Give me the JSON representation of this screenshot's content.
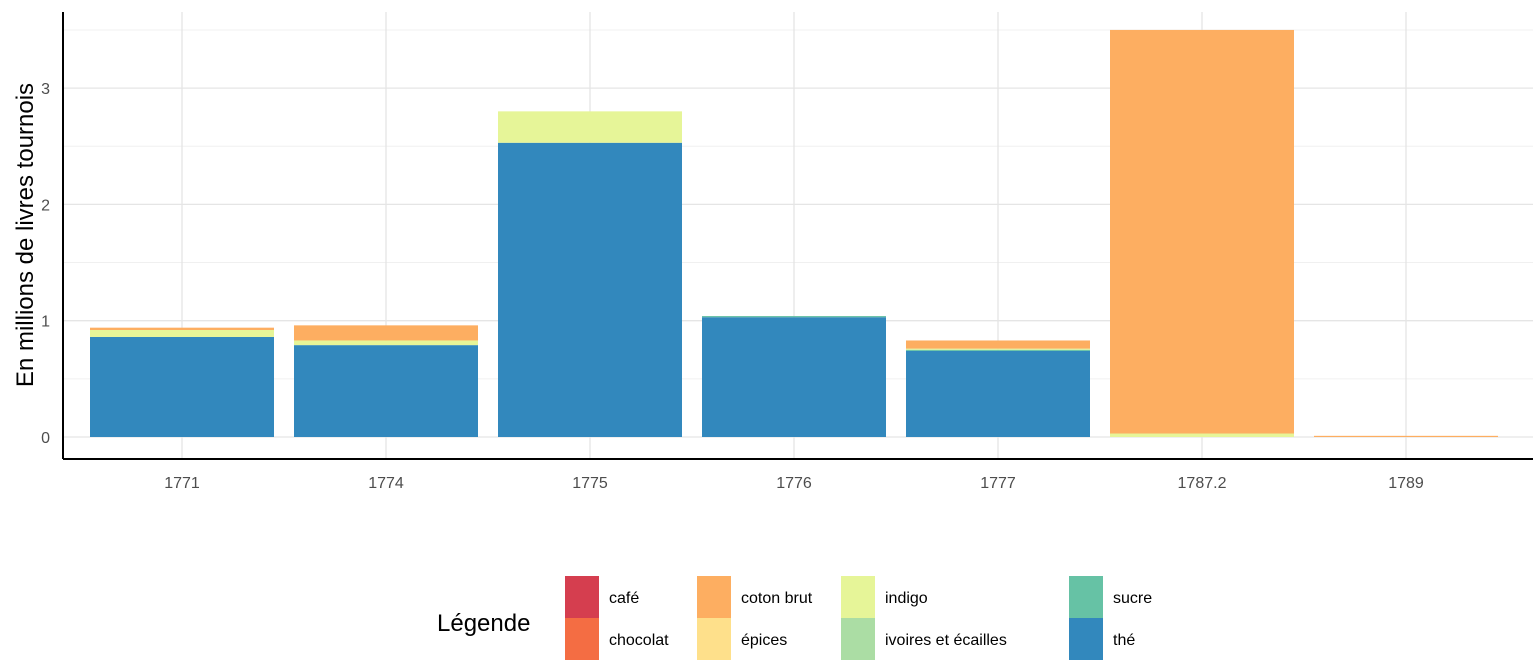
{
  "chart_data": {
    "type": "bar",
    "stacked": true,
    "title": "",
    "xlabel": "",
    "ylabel": "En millions de livres tournois",
    "ylim": [
      0,
      3.5
    ],
    "y_ticks": [
      "0",
      "1",
      "2",
      "3"
    ],
    "grid": true,
    "categories": [
      "1771",
      "1774",
      "1775",
      "1776",
      "1777",
      "1787.2",
      "1789"
    ],
    "series": [
      {
        "name": "café",
        "color": "#D53E4F",
        "values": [
          0,
          0,
          0,
          0,
          0,
          0,
          0
        ]
      },
      {
        "name": "chocolat",
        "color": "#F46D43",
        "values": [
          0,
          0,
          0,
          0,
          0,
          0,
          0
        ]
      },
      {
        "name": "coton brut",
        "color": "#FDAE61",
        "values": [
          0.02,
          0.13,
          0,
          0,
          0.07,
          3.47,
          0.01
        ]
      },
      {
        "name": "épices",
        "color": "#FEE08B",
        "values": [
          0,
          0,
          0,
          0,
          0,
          0,
          0
        ]
      },
      {
        "name": "indigo",
        "color": "#E6F598",
        "values": [
          0.06,
          0.04,
          0.27,
          0,
          0.01,
          0.03,
          0
        ]
      },
      {
        "name": "ivoires et écailles",
        "color": "#ABDDA4",
        "values": [
          0,
          0,
          0,
          0,
          0,
          0,
          0
        ]
      },
      {
        "name": "sucre",
        "color": "#66C2A5",
        "values": [
          0,
          0,
          0,
          0.01,
          0.01,
          0,
          0
        ]
      },
      {
        "name": "thé",
        "color": "#3288BD",
        "values": [
          0.86,
          0.79,
          2.53,
          1.03,
          0.74,
          0,
          0
        ]
      }
    ],
    "legend": {
      "title": "Légende",
      "position": "bottom"
    }
  }
}
